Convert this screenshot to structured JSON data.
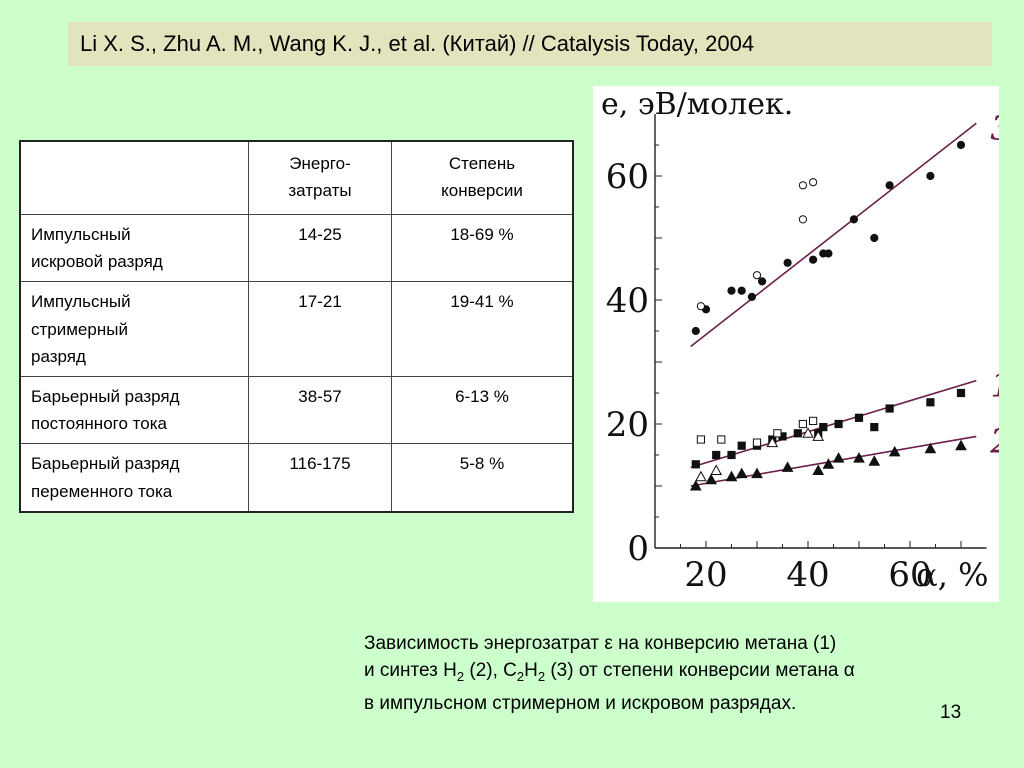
{
  "reference": "Li X. S., Zhu A. M., Wang K. J., et al. (Китай) // Catalysis Today, 2004",
  "table": {
    "headers": [
      "",
      "Энерго-\nзатраты",
      "Степень\nконверсии"
    ],
    "rows": [
      [
        "Импульсный\nискровой разряд",
        "14-25",
        "18-69 %"
      ],
      [
        "Импульсный\nстримерный\nразряд",
        "17-21",
        "19-41 %"
      ],
      [
        "Барьерный разряд\nпостоянного тока",
        "38-57",
        "6-13 %"
      ],
      [
        "Барьерный разряд\nпеременного тока",
        "116-175",
        "5-8 %"
      ]
    ]
  },
  "chart_data": {
    "type": "scatter",
    "ylabel": "e, эВ/молек.",
    "xlabel": "α, %",
    "xlim": [
      10,
      75
    ],
    "ylim": [
      0,
      70
    ],
    "xticks": [
      20,
      40,
      60
    ],
    "yticks": [
      0,
      20,
      40,
      60
    ],
    "grid": false,
    "series": [
      {
        "name": "3",
        "marker": "filled-circle",
        "points": [
          [
            18,
            35
          ],
          [
            20,
            38.5
          ],
          [
            25,
            41.5
          ],
          [
            27,
            41.5
          ],
          [
            29,
            40.5
          ],
          [
            31,
            43
          ],
          [
            36,
            46
          ],
          [
            41,
            46.5
          ],
          [
            43,
            47.5
          ],
          [
            44,
            47.5
          ],
          [
            49,
            53
          ],
          [
            53,
            50
          ],
          [
            56,
            58.5
          ],
          [
            64,
            60
          ],
          [
            70,
            65
          ]
        ],
        "fit": [
          [
            17,
            32.5
          ],
          [
            73,
            68.5
          ]
        ]
      },
      {
        "name": "3 (open)",
        "marker": "open-circle",
        "points": [
          [
            19,
            39
          ],
          [
            30,
            44
          ],
          [
            39,
            53
          ],
          [
            39,
            58.5
          ],
          [
            41,
            59
          ]
        ]
      },
      {
        "name": "1",
        "marker": "filled-square",
        "points": [
          [
            18,
            13.5
          ],
          [
            22,
            15
          ],
          [
            25,
            15
          ],
          [
            27,
            16.5
          ],
          [
            30,
            16.5
          ],
          [
            33,
            17.5
          ],
          [
            35,
            18
          ],
          [
            38,
            18.5
          ],
          [
            42,
            18.5
          ],
          [
            43,
            19.5
          ],
          [
            46,
            20
          ],
          [
            50,
            21
          ],
          [
            53,
            19.5
          ],
          [
            56,
            22.5
          ],
          [
            64,
            23.5
          ],
          [
            70,
            25
          ]
        ],
        "fit": [
          [
            17,
            13
          ],
          [
            73,
            27
          ]
        ]
      },
      {
        "name": "1 (open)",
        "marker": "open-square",
        "points": [
          [
            19,
            17.5
          ],
          [
            23,
            17.5
          ],
          [
            30,
            17
          ],
          [
            34,
            18.5
          ],
          [
            39,
            20
          ],
          [
            41,
            20.5
          ]
        ]
      },
      {
        "name": "2",
        "marker": "filled-triangle",
        "points": [
          [
            18,
            10
          ],
          [
            21,
            11
          ],
          [
            25,
            11.5
          ],
          [
            27,
            12
          ],
          [
            30,
            12
          ],
          [
            36,
            13
          ],
          [
            42,
            12.5
          ],
          [
            44,
            13.5
          ],
          [
            46,
            14.5
          ],
          [
            50,
            14.5
          ],
          [
            53,
            14
          ],
          [
            57,
            15.5
          ],
          [
            64,
            16
          ],
          [
            70,
            16.5
          ]
        ],
        "fit": [
          [
            17,
            10
          ],
          [
            73,
            18
          ]
        ]
      },
      {
        "name": "2 (open)",
        "marker": "open-triangle",
        "points": [
          [
            19,
            11.5
          ],
          [
            22,
            12.5
          ],
          [
            33,
            17
          ],
          [
            40,
            18.5
          ],
          [
            42,
            18
          ]
        ]
      }
    ]
  },
  "caption": {
    "line1": "Зависимость энергозатрат ε на конверсию метана (1)",
    "line2_part1": "и синтез H",
    "sub1": "2",
    "line2_part2": " (2), C",
    "sub2": "2",
    "line2_part3": "H",
    "sub3": "2",
    "line2_part4": " (3) от степени конверсии метана α",
    "line3": "в импульсном стримерном и искровом разрядах."
  },
  "slide_number": "13"
}
